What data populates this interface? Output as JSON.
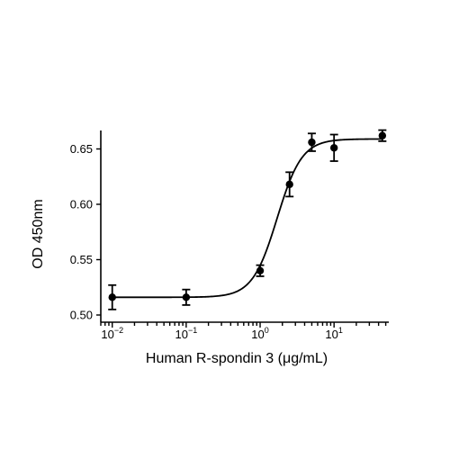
{
  "chart_data": {
    "type": "scatter",
    "title": "",
    "xlabel": "Human R-spondin 3 (μg/mL)",
    "ylabel": "OD 450nm",
    "x_scale": "log",
    "xlim": [
      0.007,
      55
    ],
    "ylim": [
      0.5,
      0.67
    ],
    "grid": false,
    "legend": "none",
    "x_tick_labels": [
      {
        "value": 0.01,
        "base": "10",
        "exp": "−2"
      },
      {
        "value": 0.1,
        "base": "10",
        "exp": "−1"
      },
      {
        "value": 1,
        "base": "10",
        "exp": "0"
      },
      {
        "value": 10,
        "base": "10",
        "exp": "1"
      }
    ],
    "y_tick_labels": [
      {
        "value": 0.5,
        "label": "0.50"
      },
      {
        "value": 0.55,
        "label": "0.55"
      },
      {
        "value": 0.6,
        "label": "0.60"
      },
      {
        "value": 0.65,
        "label": "0.65"
      }
    ],
    "series": [
      {
        "points": [
          {
            "x": 0.01,
            "y": 0.516,
            "err": 0.011
          },
          {
            "x": 0.1,
            "y": 0.516,
            "err": 0.007
          },
          {
            "x": 1,
            "y": 0.54,
            "err": 0.005
          },
          {
            "x": 2.5,
            "y": 0.618,
            "err": 0.011
          },
          {
            "x": 5,
            "y": 0.656,
            "err": 0.008
          },
          {
            "x": 10,
            "y": 0.651,
            "err": 0.012
          },
          {
            "x": 45,
            "y": 0.662,
            "err": 0.005
          }
        ],
        "fit": {
          "model": "4PL",
          "bottom": 0.516,
          "top": 0.659,
          "ec50": 1.7,
          "hill": 2.6
        }
      }
    ]
  }
}
